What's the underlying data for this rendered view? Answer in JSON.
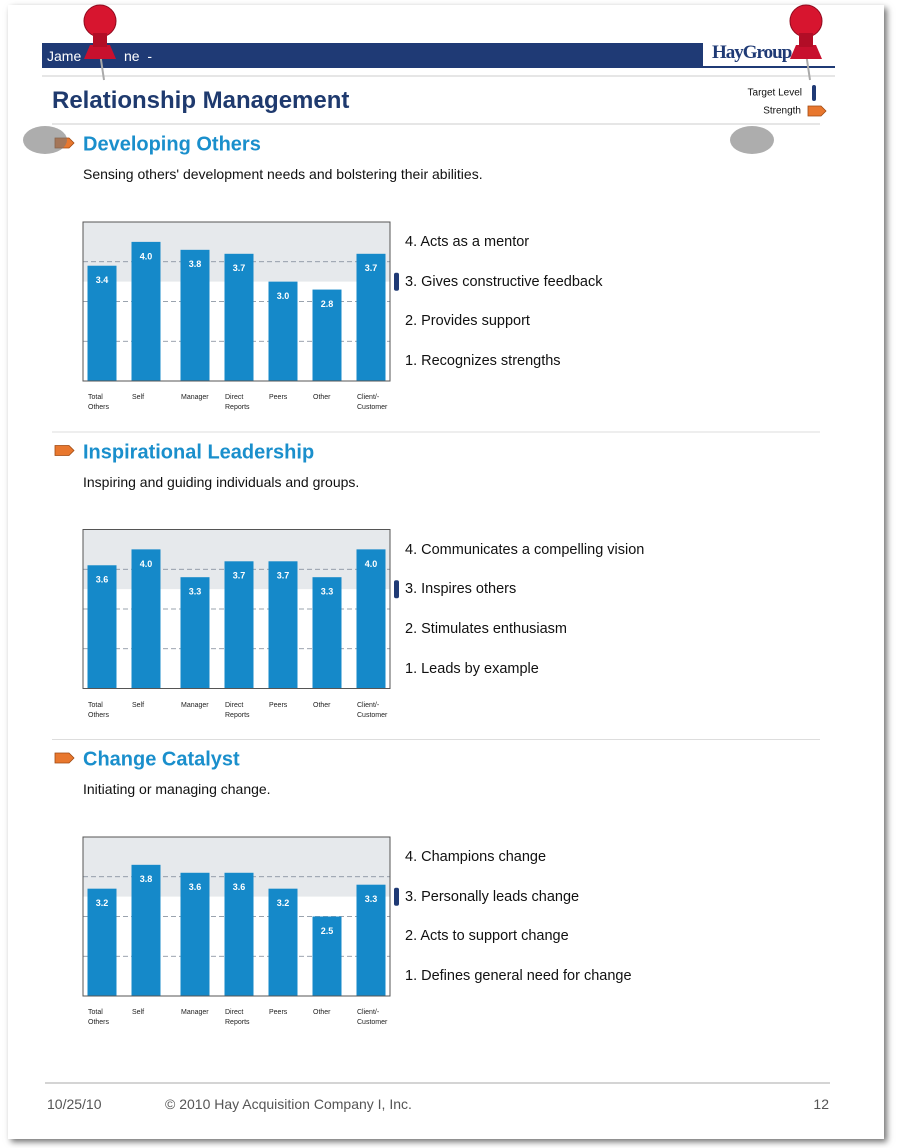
{
  "header": {
    "name_start": "Jame",
    "name_end": "ne  -",
    "logo": "HayGroup",
    "title": "Relationship Management"
  },
  "legend": {
    "target": "Target Level",
    "strength": "Strength"
  },
  "sections": [
    {
      "title": "Developing Others",
      "description": "Sensing others' development needs and bolstering their abilities.",
      "chart": {
        "type": "bar",
        "categories": [
          "Total\nOthers",
          "Self",
          "Manager",
          "Direct\nReports",
          "Peers",
          "Other",
          "Client/-\nCustomer"
        ],
        "values": [
          3.4,
          4,
          3.8,
          3.7,
          3,
          2.8,
          3.7
        ],
        "value_labels": [
          "3.4",
          "4.0",
          "3.8",
          "3.7",
          "3.0",
          "2.8",
          "3.7"
        ],
        "color": "#1589c9",
        "ylim": [
          0.5,
          4.5
        ],
        "yticks": [
          1.5,
          2.5,
          3.5
        ],
        "target_level": 3
      },
      "items": [
        "4. Acts as a mentor",
        "3. Gives constructive feedback",
        "2. Provides support",
        "1. Recognizes strengths"
      ]
    },
    {
      "title": "Inspirational Leadership",
      "description": "Inspiring and guiding individuals and groups.",
      "chart": {
        "type": "bar",
        "categories": [
          "Total\nOthers",
          "Self",
          "Manager",
          "Direct\nReports",
          "Peers",
          "Other",
          "Client/-\nCustomer"
        ],
        "values": [
          3.6,
          4,
          3.3,
          3.7,
          3.7,
          3.3,
          4
        ],
        "value_labels": [
          "3.6",
          "4.0",
          "3.3",
          "3.7",
          "3.7",
          "3.3",
          "4.0"
        ],
        "color": "#1589c9",
        "ylim": [
          0.5,
          4.5
        ],
        "yticks": [
          1.5,
          2.5,
          3.5
        ],
        "target_level": 3
      },
      "items": [
        "4. Communicates a compelling vision",
        "3. Inspires others",
        "2. Stimulates enthusiasm",
        "1. Leads by example"
      ]
    },
    {
      "title": "Change Catalyst",
      "description": "Initiating or managing change.",
      "chart": {
        "type": "bar",
        "categories": [
          "Total\nOthers",
          "Self",
          "Manager",
          "Direct\nReports",
          "Peers",
          "Other",
          "Client/-\nCustomer"
        ],
        "values": [
          3.2,
          3.8,
          3.6,
          3.6,
          3.2,
          2.5,
          3.3
        ],
        "value_labels": [
          "3.2",
          "3.8",
          "3.6",
          "3.6",
          "3.2",
          "2.5",
          "3.3"
        ],
        "color": "#1589c9",
        "ylim": [
          0.5,
          4.5
        ],
        "yticks": [
          1.5,
          2.5,
          3.5
        ],
        "target_level": 3
      },
      "items": [
        "4. Champions change",
        "3. Personally leads change",
        "2. Acts to support change",
        "1. Defines general need for change"
      ]
    }
  ],
  "footer": {
    "date": "10/25/10",
    "copyright": "© 2010 Hay Acquisition Company I, Inc.",
    "page": "12"
  }
}
